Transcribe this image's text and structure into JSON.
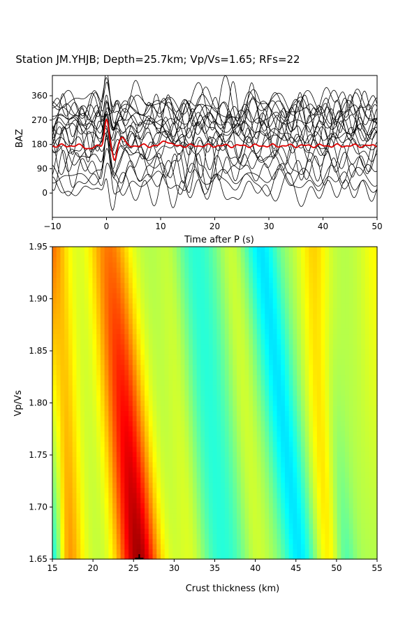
{
  "chart_data": [
    {
      "type": "line",
      "title": "Station JM.YHJB; Depth=25.7km; Vp/Vs=1.65; RFs=22",
      "xlabel": "Time after P (s)",
      "ylabel": "BAZ",
      "xlim": [
        -10,
        50
      ],
      "ylim": [
        -90,
        435
      ],
      "xticks": [
        "−10",
        "0",
        "10",
        "20",
        "30",
        "40",
        "50"
      ],
      "xtick_values": [
        -10,
        0,
        10,
        20,
        30,
        40,
        50
      ],
      "yticks": [
        "0",
        "90",
        "180",
        "270",
        "360"
      ],
      "ytick_values": [
        0,
        90,
        180,
        270,
        360
      ],
      "trace_count": 22,
      "trace_baz": [
        10,
        40,
        60,
        85,
        110,
        130,
        150,
        170,
        190,
        205,
        220,
        235,
        245,
        255,
        265,
        275,
        285,
        295,
        305,
        315,
        325,
        335
      ],
      "trace_color": "#000000",
      "stack": {
        "baz": 175,
        "color": "#e00000"
      },
      "grid": false
    },
    {
      "type": "heatmap",
      "xlabel": "Crust thickness (km)",
      "ylabel": "Vp/Vs",
      "xlim": [
        15,
        55
      ],
      "ylim": [
        1.65,
        1.95
      ],
      "xticks": [
        "15",
        "20",
        "25",
        "30",
        "35",
        "40",
        "45",
        "50",
        "55"
      ],
      "xtick_values": [
        15,
        20,
        25,
        30,
        35,
        40,
        45,
        50,
        55
      ],
      "yticks": [
        "1.65",
        "1.70",
        "1.75",
        "1.80",
        "1.85",
        "1.90",
        "1.95"
      ],
      "ytick_values": [
        1.65,
        1.7,
        1.75,
        1.8,
        1.85,
        1.9,
        1.95
      ],
      "colormap": "jet",
      "best_fit": {
        "depth": 25.7,
        "vpvs": 1.65,
        "marker": "+"
      },
      "grid": false
    }
  ]
}
